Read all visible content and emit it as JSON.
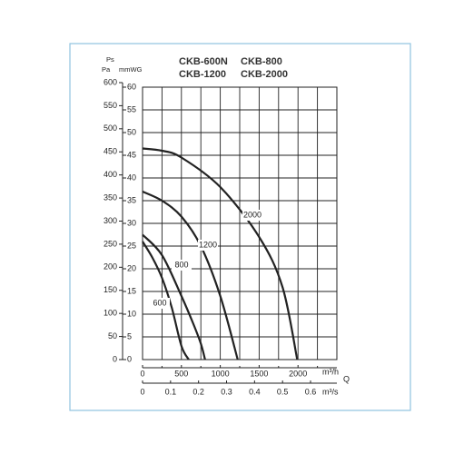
{
  "chart_data": {
    "type": "line",
    "models": [
      "CKB-600N",
      "CKB-800",
      "CKB-1200",
      "CKB-2000"
    ],
    "y_axis_label": "Ps",
    "y2_unit": "Pa",
    "y_unit": "mmWG",
    "x_axis_label": "Q",
    "x_unit": "m³/h",
    "x2_unit": "m³/s",
    "xlim": [
      0,
      2500
    ],
    "xticks": [
      0,
      500,
      1000,
      1500,
      2000
    ],
    "x_minor_ticks": [
      250,
      750,
      1250,
      1750,
      2250
    ],
    "x2lim": [
      0,
      0.694
    ],
    "x2ticks": [
      0,
      0.1,
      0.2,
      0.3,
      0.4,
      0.5,
      0.6
    ],
    "ylim": [
      0,
      60
    ],
    "yticks": [
      0,
      5,
      10,
      15,
      20,
      25,
      30,
      35,
      40,
      45,
      50,
      55,
      60
    ],
    "y2lim": [
      0,
      600
    ],
    "y2ticks": [
      0,
      50,
      100,
      150,
      200,
      250,
      300,
      350,
      400,
      450,
      500,
      550,
      600
    ],
    "grid": true,
    "series": [
      {
        "name": "600",
        "color": "#222222",
        "x": [
          0,
          125,
          250,
          375,
          500,
          594
        ],
        "values": [
          26,
          22.5,
          18,
          11.5,
          3,
          0
        ]
      },
      {
        "name": "800",
        "color": "#222222",
        "x": [
          0,
          250,
          500,
          650,
          750,
          804
        ],
        "values": [
          27.5,
          23,
          14,
          8,
          3.5,
          0
        ]
      },
      {
        "name": "1200",
        "color": "#222222",
        "x": [
          0,
          250,
          500,
          750,
          1000,
          1224
        ],
        "values": [
          37,
          35,
          31.5,
          25,
          14,
          0
        ]
      },
      {
        "name": "2000",
        "color": "#222222",
        "x": [
          0,
          250,
          500,
          1000,
          1500,
          1800,
          1990
        ],
        "values": [
          46.5,
          46,
          44.5,
          38,
          27,
          16,
          0
        ]
      }
    ]
  }
}
